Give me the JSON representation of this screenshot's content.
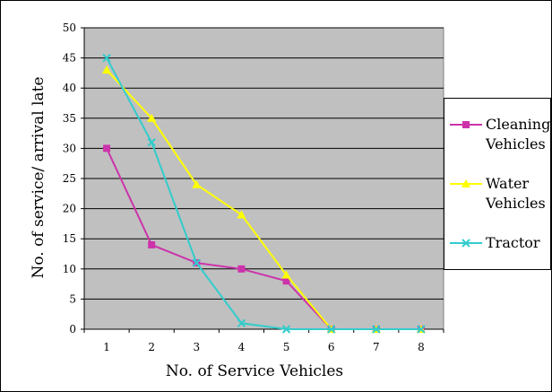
{
  "chart_data": {
    "type": "line",
    "title": "",
    "xlabel": "No. of Service Vehicles",
    "ylabel": "No. of service/ arrival late",
    "x": [
      1,
      2,
      3,
      4,
      5,
      6,
      7,
      8
    ],
    "ylim": [
      0,
      50
    ],
    "yticks": [
      0,
      5,
      10,
      15,
      20,
      25,
      30,
      35,
      40,
      45,
      50
    ],
    "grid": "horizontal",
    "plot_background": "#c0c0c0",
    "legend_position": "right",
    "series": [
      {
        "name": "Cleaning Vehicles",
        "label_lines": [
          "Cleaning",
          "Vehicles"
        ],
        "color": "#cc33aa",
        "marker": "square",
        "values": [
          30,
          14,
          11,
          10,
          8,
          0,
          0,
          0
        ]
      },
      {
        "name": "Water Vehicles",
        "label_lines": [
          "Water",
          "Vehicles"
        ],
        "color": "#ffff00",
        "marker": "triangle",
        "values": [
          43,
          35,
          24,
          19,
          9,
          0,
          0,
          0
        ]
      },
      {
        "name": "Tractor",
        "label_lines": [
          "Tractor"
        ],
        "color": "#33cccc",
        "marker": "x",
        "values": [
          45,
          31,
          11,
          1,
          0,
          0,
          0,
          0
        ]
      }
    ]
  }
}
